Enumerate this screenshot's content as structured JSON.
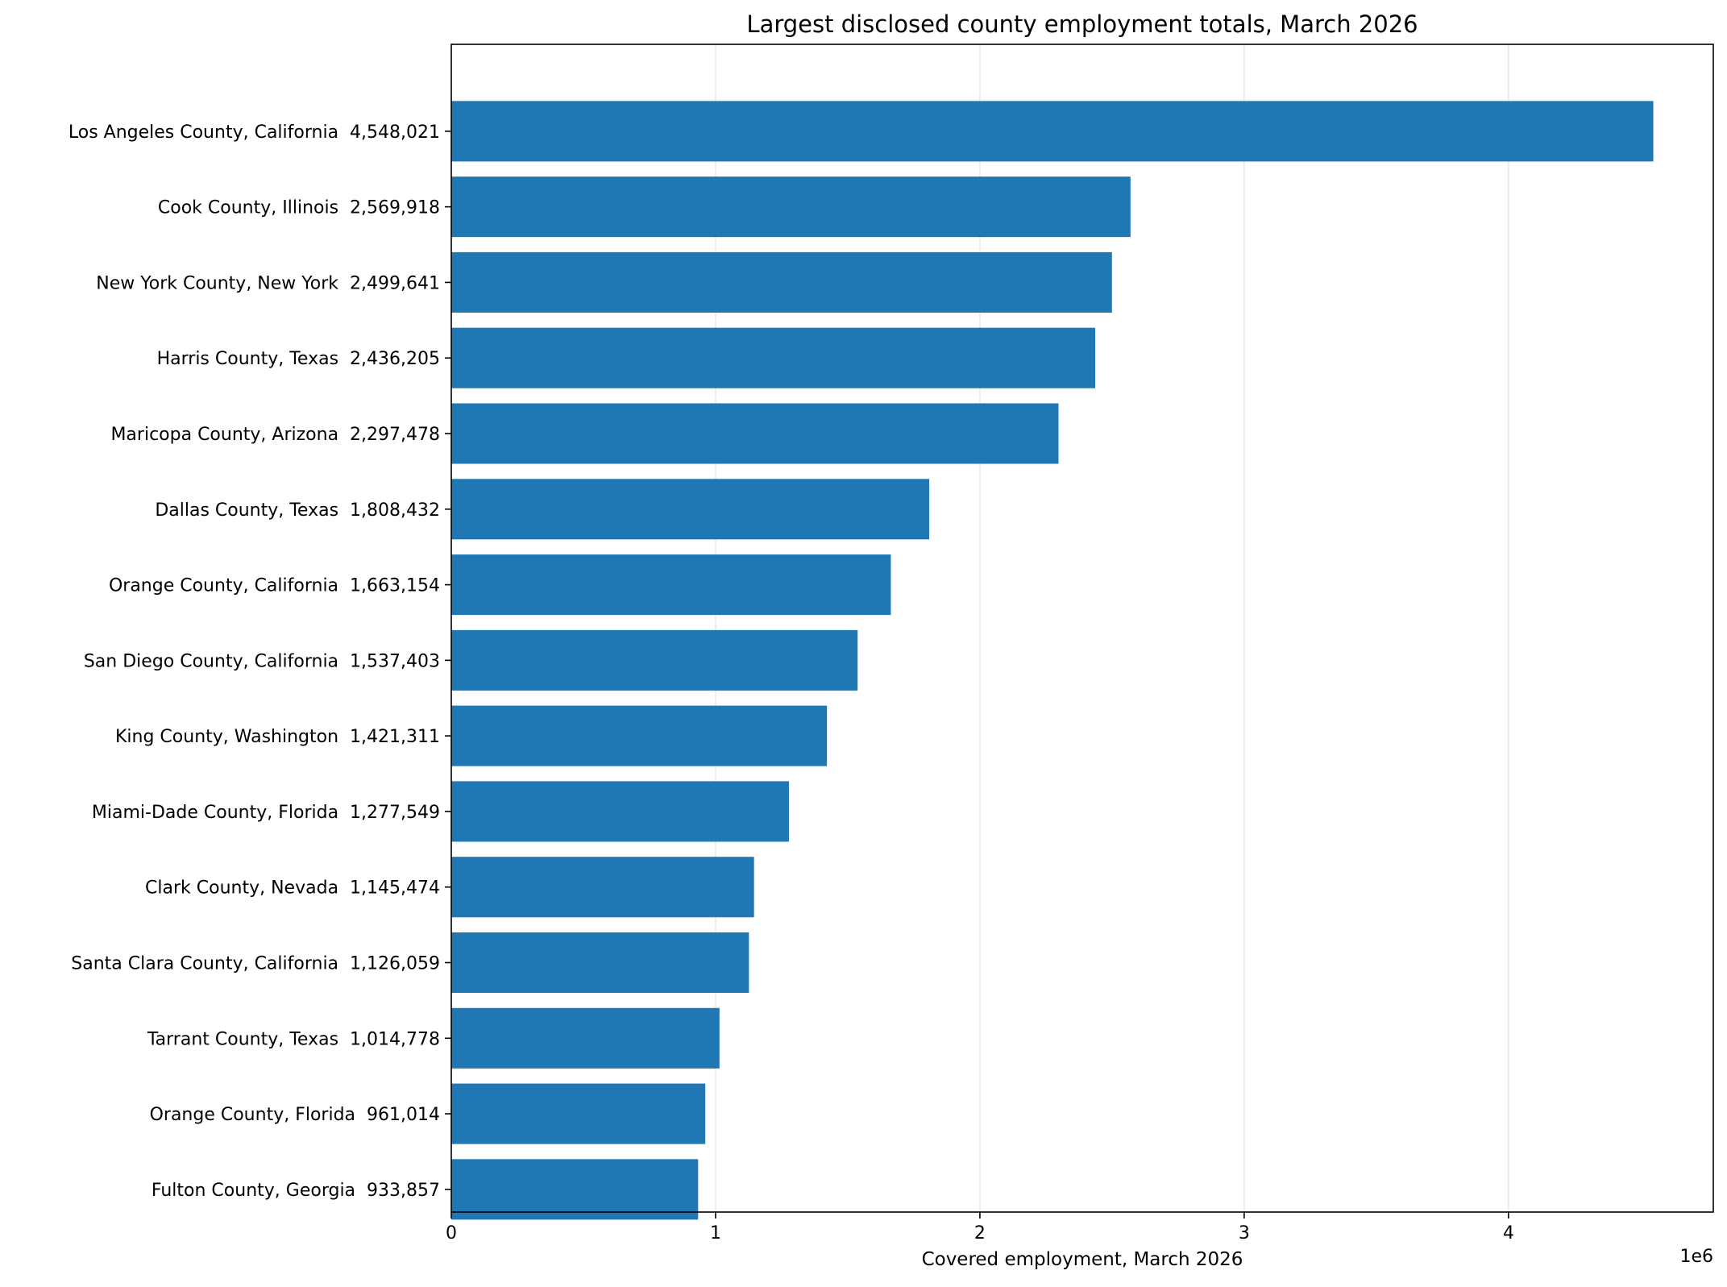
{
  "chart_data": {
    "type": "bar",
    "orientation": "horizontal",
    "title": "Largest disclosed county employment totals, March 2026",
    "xlabel": "Covered employment, March 2026",
    "ylabel": "",
    "x_offset_label": "1e6",
    "xlim": [
      0,
      4775000
    ],
    "x_ticks": [
      0,
      1000000,
      2000000,
      3000000,
      4000000
    ],
    "x_tick_labels": [
      "0",
      "1",
      "2",
      "3",
      "4"
    ],
    "grid": {
      "x": true,
      "y": false
    },
    "legend": "none",
    "bar_color": "#1f77b4",
    "categories": [
      "Los Angeles County, California  4,548,021",
      "Cook County, Illinois  2,569,918",
      "New York County, New York  2,499,641",
      "Harris County, Texas  2,436,205",
      "Maricopa County, Arizona  2,297,478",
      "Dallas County, Texas  1,808,432",
      "Orange County, California  1,663,154",
      "San Diego County, California  1,537,403",
      "King County, Washington  1,421,311",
      "Miami-Dade County, Florida  1,277,549",
      "Clark County, Nevada  1,145,474",
      "Santa Clara County, California  1,126,059",
      "Tarrant County, Texas  1,014,778",
      "Orange County, Florida  961,014",
      "Fulton County, Georgia  933,857"
    ],
    "values": [
      4548021,
      2569918,
      2499641,
      2436205,
      2297478,
      1808432,
      1663154,
      1537403,
      1421311,
      1277549,
      1145474,
      1126059,
      1014778,
      961014,
      933857
    ]
  }
}
